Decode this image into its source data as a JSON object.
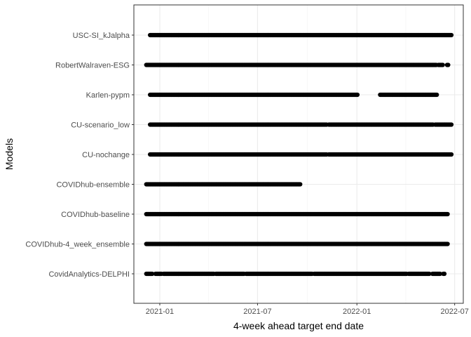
{
  "chart_data": {
    "type": "scatter",
    "title": "",
    "xlabel": "4-week ahead target end date",
    "ylabel": "Models",
    "x_type": "date",
    "xlim": [
      "2020-11-14",
      "2022-07-17"
    ],
    "x_ticks": [
      "2021-01-01",
      "2021-07-01",
      "2022-01-01",
      "2022-07-01"
    ],
    "x_tick_labels": [
      "2021-01",
      "2021-07",
      "2022-01",
      "2022-07"
    ],
    "point_interval_days": 1,
    "grid": true,
    "legend": "none",
    "categories": [
      "CovidAnalytics-DELPHI",
      "COVIDhub-4_week_ensemble",
      "COVIDhub-baseline",
      "COVIDhub-ensemble",
      "CU-nochange",
      "CU-scenario_low",
      "Karlen-pypm",
      "RobertWalraven-ESG",
      "USC-SI_kJalpha"
    ],
    "series": [
      {
        "category": "CovidAnalytics-DELPHI",
        "ranges": [
          [
            "2020-12-07",
            "2020-12-18"
          ],
          [
            "2020-12-24",
            "2021-01-04"
          ],
          [
            "2021-01-08",
            "2021-04-11"
          ],
          [
            "2021-04-15",
            "2021-06-06"
          ],
          [
            "2021-06-10",
            "2021-10-10"
          ],
          [
            "2021-10-14",
            "2022-04-03"
          ],
          [
            "2022-04-07",
            "2022-05-15"
          ],
          [
            "2022-05-21",
            "2022-06-04"
          ],
          [
            "2022-06-10",
            "2022-06-12"
          ]
        ]
      },
      {
        "category": "COVIDhub-4_week_ensemble",
        "ranges": [
          [
            "2020-12-07",
            "2022-06-18"
          ]
        ]
      },
      {
        "category": "COVIDhub-baseline",
        "ranges": [
          [
            "2020-12-07",
            "2022-06-18"
          ]
        ]
      },
      {
        "category": "COVIDhub-ensemble",
        "ranges": [
          [
            "2020-12-07",
            "2021-09-18"
          ]
        ]
      },
      {
        "category": "CU-nochange",
        "ranges": [
          [
            "2020-12-14",
            "2021-11-06"
          ],
          [
            "2021-11-10",
            "2022-06-25"
          ]
        ]
      },
      {
        "category": "CU-scenario_low",
        "ranges": [
          [
            "2020-12-14",
            "2021-11-06"
          ],
          [
            "2021-11-10",
            "2022-05-22"
          ],
          [
            "2022-05-26",
            "2022-06-25"
          ]
        ]
      },
      {
        "category": "Karlen-pypm",
        "ranges": [
          [
            "2020-12-14",
            "2022-01-02"
          ],
          [
            "2022-02-13",
            "2022-05-29"
          ]
        ]
      },
      {
        "category": "RobertWalraven-ESG",
        "ranges": [
          [
            "2020-12-07",
            "2022-05-28"
          ],
          [
            "2022-06-01",
            "2022-06-09"
          ],
          [
            "2022-06-17",
            "2022-06-19"
          ]
        ]
      },
      {
        "category": "USC-SI_kJalpha",
        "ranges": [
          [
            "2020-12-14",
            "2022-06-25"
          ]
        ]
      }
    ]
  }
}
